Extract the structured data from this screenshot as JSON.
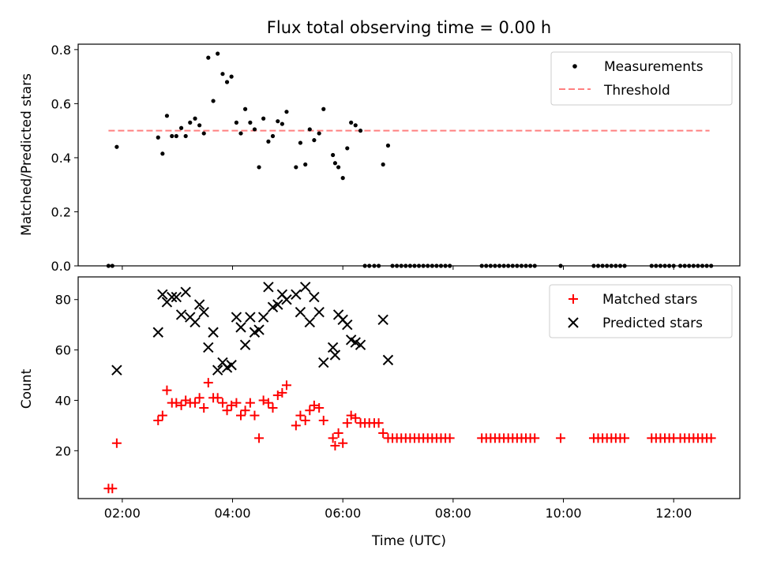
{
  "chart_data": [
    {
      "type": "scatter",
      "title": "Flux total observing time = 0.00 h",
      "xlabel": "",
      "ylabel": "Matched/Predicted stars",
      "xlim": [
        1.2,
        13.2
      ],
      "ylim": [
        0,
        0.82
      ],
      "yticks": [
        0.0,
        0.2,
        0.4,
        0.6,
        0.8
      ],
      "ytick_labels": [
        "0.0",
        "0.2",
        "0.4",
        "0.6",
        "0.8"
      ],
      "legend": {
        "placement": "top-right",
        "entries": [
          "Measurements",
          "Threshold"
        ]
      },
      "threshold": {
        "name": "Threshold",
        "value": 0.5,
        "x_range": [
          1.75,
          12.65
        ],
        "color": "#ff8080"
      },
      "series": [
        {
          "name": "Measurements",
          "color": "#000000",
          "points": [
            [
              1.75,
              0.0
            ],
            [
              1.82,
              0.0
            ],
            [
              1.9,
              0.44
            ],
            [
              2.65,
              0.475
            ],
            [
              2.73,
              0.415
            ],
            [
              2.81,
              0.555
            ],
            [
              2.9,
              0.48
            ],
            [
              2.98,
              0.48
            ],
            [
              3.07,
              0.51
            ],
            [
              3.15,
              0.48
            ],
            [
              3.23,
              0.53
            ],
            [
              3.32,
              0.545
            ],
            [
              3.4,
              0.52
            ],
            [
              3.48,
              0.49
            ],
            [
              3.56,
              0.77
            ],
            [
              3.65,
              0.61
            ],
            [
              3.73,
              0.785
            ],
            [
              3.82,
              0.71
            ],
            [
              3.9,
              0.68
            ],
            [
              3.98,
              0.7
            ],
            [
              4.07,
              0.53
            ],
            [
              4.15,
              0.49
            ],
            [
              4.23,
              0.58
            ],
            [
              4.32,
              0.53
            ],
            [
              4.4,
              0.505
            ],
            [
              4.48,
              0.365
            ],
            [
              4.56,
              0.545
            ],
            [
              4.65,
              0.46
            ],
            [
              4.73,
              0.48
            ],
            [
              4.82,
              0.535
            ],
            [
              4.9,
              0.525
            ],
            [
              4.98,
              0.57
            ],
            [
              5.15,
              0.365
            ],
            [
              5.23,
              0.455
            ],
            [
              5.32,
              0.375
            ],
            [
              5.4,
              0.505
            ],
            [
              5.48,
              0.465
            ],
            [
              5.57,
              0.49
            ],
            [
              5.65,
              0.58
            ],
            [
              5.82,
              0.41
            ],
            [
              5.86,
              0.38
            ],
            [
              5.92,
              0.365
            ],
            [
              6.0,
              0.325
            ],
            [
              6.08,
              0.435
            ],
            [
              6.15,
              0.53
            ],
            [
              6.23,
              0.52
            ],
            [
              6.32,
              0.5
            ],
            [
              6.73,
              0.375
            ],
            [
              6.82,
              0.445
            ],
            [
              6.4,
              0.0
            ],
            [
              6.48,
              0.0
            ],
            [
              6.57,
              0.0
            ],
            [
              6.65,
              0.0
            ],
            [
              6.9,
              0.0
            ],
            [
              6.98,
              0.0
            ],
            [
              7.06,
              0.0
            ],
            [
              7.14,
              0.0
            ],
            [
              7.22,
              0.0
            ],
            [
              7.3,
              0.0
            ],
            [
              7.38,
              0.0
            ],
            [
              7.46,
              0.0
            ],
            [
              7.54,
              0.0
            ],
            [
              7.62,
              0.0
            ],
            [
              7.7,
              0.0
            ],
            [
              7.78,
              0.0
            ],
            [
              7.86,
              0.0
            ],
            [
              7.94,
              0.0
            ],
            [
              8.52,
              0.0
            ],
            [
              8.6,
              0.0
            ],
            [
              8.68,
              0.0
            ],
            [
              8.76,
              0.0
            ],
            [
              8.84,
              0.0
            ],
            [
              8.92,
              0.0
            ],
            [
              9.0,
              0.0
            ],
            [
              9.08,
              0.0
            ],
            [
              9.16,
              0.0
            ],
            [
              9.24,
              0.0
            ],
            [
              9.32,
              0.0
            ],
            [
              9.4,
              0.0
            ],
            [
              9.48,
              0.0
            ],
            [
              9.95,
              0.0
            ],
            [
              10.55,
              0.0
            ],
            [
              10.63,
              0.0
            ],
            [
              10.71,
              0.0
            ],
            [
              10.79,
              0.0
            ],
            [
              10.87,
              0.0
            ],
            [
              10.95,
              0.0
            ],
            [
              11.03,
              0.0
            ],
            [
              11.11,
              0.0
            ],
            [
              11.6,
              0.0
            ],
            [
              11.68,
              0.0
            ],
            [
              11.76,
              0.0
            ],
            [
              11.84,
              0.0
            ],
            [
              11.92,
              0.0
            ],
            [
              12.0,
              0.0
            ],
            [
              12.12,
              0.0
            ],
            [
              12.2,
              0.0
            ],
            [
              12.28,
              0.0
            ],
            [
              12.36,
              0.0
            ],
            [
              12.44,
              0.0
            ],
            [
              12.52,
              0.0
            ],
            [
              12.6,
              0.0
            ],
            [
              12.68,
              0.0
            ]
          ]
        }
      ]
    },
    {
      "type": "scatter",
      "title": "",
      "xlabel": "Time (UTC)",
      "ylabel": "Count",
      "xlim": [
        1.2,
        13.2
      ],
      "ylim": [
        1,
        89
      ],
      "xticks": [
        2,
        4,
        6,
        8,
        10,
        12
      ],
      "xtick_labels": [
        "02:00",
        "04:00",
        "06:00",
        "08:00",
        "10:00",
        "12:00"
      ],
      "yticks": [
        20,
        40,
        60,
        80
      ],
      "ytick_labels": [
        "20",
        "40",
        "60",
        "80"
      ],
      "legend": {
        "placement": "top-right",
        "entries": [
          "Matched stars",
          "Predicted stars"
        ]
      },
      "series": [
        {
          "name": "Matched stars",
          "marker": "plus",
          "color": "#ff0000",
          "points": [
            [
              1.75,
              5
            ],
            [
              1.82,
              5
            ],
            [
              1.9,
              23
            ],
            [
              2.65,
              32
            ],
            [
              2.73,
              34
            ],
            [
              2.81,
              44
            ],
            [
              2.9,
              39
            ],
            [
              2.98,
              39
            ],
            [
              3.07,
              38
            ],
            [
              3.15,
              40
            ],
            [
              3.23,
              39
            ],
            [
              3.32,
              39
            ],
            [
              3.4,
              41
            ],
            [
              3.48,
              37
            ],
            [
              3.56,
              47
            ],
            [
              3.65,
              41
            ],
            [
              3.73,
              41
            ],
            [
              3.82,
              39
            ],
            [
              3.9,
              36
            ],
            [
              3.98,
              38
            ],
            [
              4.07,
              39
            ],
            [
              4.15,
              34
            ],
            [
              4.23,
              36
            ],
            [
              4.32,
              39
            ],
            [
              4.4,
              34
            ],
            [
              4.48,
              25
            ],
            [
              4.56,
              40
            ],
            [
              4.65,
              39
            ],
            [
              4.73,
              37
            ],
            [
              4.82,
              42
            ],
            [
              4.9,
              43
            ],
            [
              4.98,
              46
            ],
            [
              5.15,
              30
            ],
            [
              5.23,
              34
            ],
            [
              5.32,
              32
            ],
            [
              5.4,
              36
            ],
            [
              5.48,
              38
            ],
            [
              5.57,
              37
            ],
            [
              5.65,
              32
            ],
            [
              5.82,
              25
            ],
            [
              5.86,
              22
            ],
            [
              5.92,
              27
            ],
            [
              6.0,
              23
            ],
            [
              6.08,
              31
            ],
            [
              6.15,
              34
            ],
            [
              6.23,
              33
            ],
            [
              6.32,
              31
            ],
            [
              6.4,
              31
            ],
            [
              6.48,
              31
            ],
            [
              6.57,
              31
            ],
            [
              6.65,
              31
            ],
            [
              6.73,
              27
            ],
            [
              6.82,
              25
            ],
            [
              6.9,
              25
            ],
            [
              6.98,
              25
            ],
            [
              7.06,
              25
            ],
            [
              7.14,
              25
            ],
            [
              7.22,
              25
            ],
            [
              7.3,
              25
            ],
            [
              7.38,
              25
            ],
            [
              7.46,
              25
            ],
            [
              7.54,
              25
            ],
            [
              7.62,
              25
            ],
            [
              7.7,
              25
            ],
            [
              7.78,
              25
            ],
            [
              7.86,
              25
            ],
            [
              7.94,
              25
            ],
            [
              8.52,
              25
            ],
            [
              8.6,
              25
            ],
            [
              8.68,
              25
            ],
            [
              8.76,
              25
            ],
            [
              8.84,
              25
            ],
            [
              8.92,
              25
            ],
            [
              9.0,
              25
            ],
            [
              9.08,
              25
            ],
            [
              9.16,
              25
            ],
            [
              9.24,
              25
            ],
            [
              9.32,
              25
            ],
            [
              9.4,
              25
            ],
            [
              9.48,
              25
            ],
            [
              9.95,
              25
            ],
            [
              10.55,
              25
            ],
            [
              10.63,
              25
            ],
            [
              10.71,
              25
            ],
            [
              10.79,
              25
            ],
            [
              10.87,
              25
            ],
            [
              10.95,
              25
            ],
            [
              11.03,
              25
            ],
            [
              11.11,
              25
            ],
            [
              11.6,
              25
            ],
            [
              11.68,
              25
            ],
            [
              11.76,
              25
            ],
            [
              11.84,
              25
            ],
            [
              11.92,
              25
            ],
            [
              12.0,
              25
            ],
            [
              12.12,
              25
            ],
            [
              12.2,
              25
            ],
            [
              12.28,
              25
            ],
            [
              12.36,
              25
            ],
            [
              12.44,
              25
            ],
            [
              12.52,
              25
            ],
            [
              12.6,
              25
            ],
            [
              12.68,
              25
            ]
          ]
        },
        {
          "name": "Predicted stars",
          "marker": "x",
          "color": "#000000",
          "points": [
            [
              1.9,
              52
            ],
            [
              2.65,
              67
            ],
            [
              2.73,
              82
            ],
            [
              2.81,
              79
            ],
            [
              2.9,
              81
            ],
            [
              2.98,
              81
            ],
            [
              3.07,
              74
            ],
            [
              3.15,
              83
            ],
            [
              3.23,
              73
            ],
            [
              3.32,
              71
            ],
            [
              3.4,
              78
            ],
            [
              3.48,
              75
            ],
            [
              3.56,
              61
            ],
            [
              3.65,
              67
            ],
            [
              3.73,
              52
            ],
            [
              3.82,
              55
            ],
            [
              3.9,
              53
            ],
            [
              3.98,
              54
            ],
            [
              4.07,
              73
            ],
            [
              4.15,
              69
            ],
            [
              4.23,
              62
            ],
            [
              4.32,
              73
            ],
            [
              4.4,
              67
            ],
            [
              4.48,
              68
            ],
            [
              4.56,
              73
            ],
            [
              4.65,
              85
            ],
            [
              4.73,
              77
            ],
            [
              4.82,
              78
            ],
            [
              4.9,
              82
            ],
            [
              4.98,
              80
            ],
            [
              5.15,
              82
            ],
            [
              5.23,
              75
            ],
            [
              5.32,
              85
            ],
            [
              5.4,
              71
            ],
            [
              5.48,
              81
            ],
            [
              5.57,
              75
            ],
            [
              5.65,
              55
            ],
            [
              5.82,
              61
            ],
            [
              5.86,
              58
            ],
            [
              5.92,
              74
            ],
            [
              6.0,
              72
            ],
            [
              6.08,
              70
            ],
            [
              6.15,
              64
            ],
            [
              6.23,
              63
            ],
            [
              6.32,
              62
            ],
            [
              6.73,
              72
            ],
            [
              6.82,
              56
            ]
          ]
        }
      ]
    }
  ]
}
